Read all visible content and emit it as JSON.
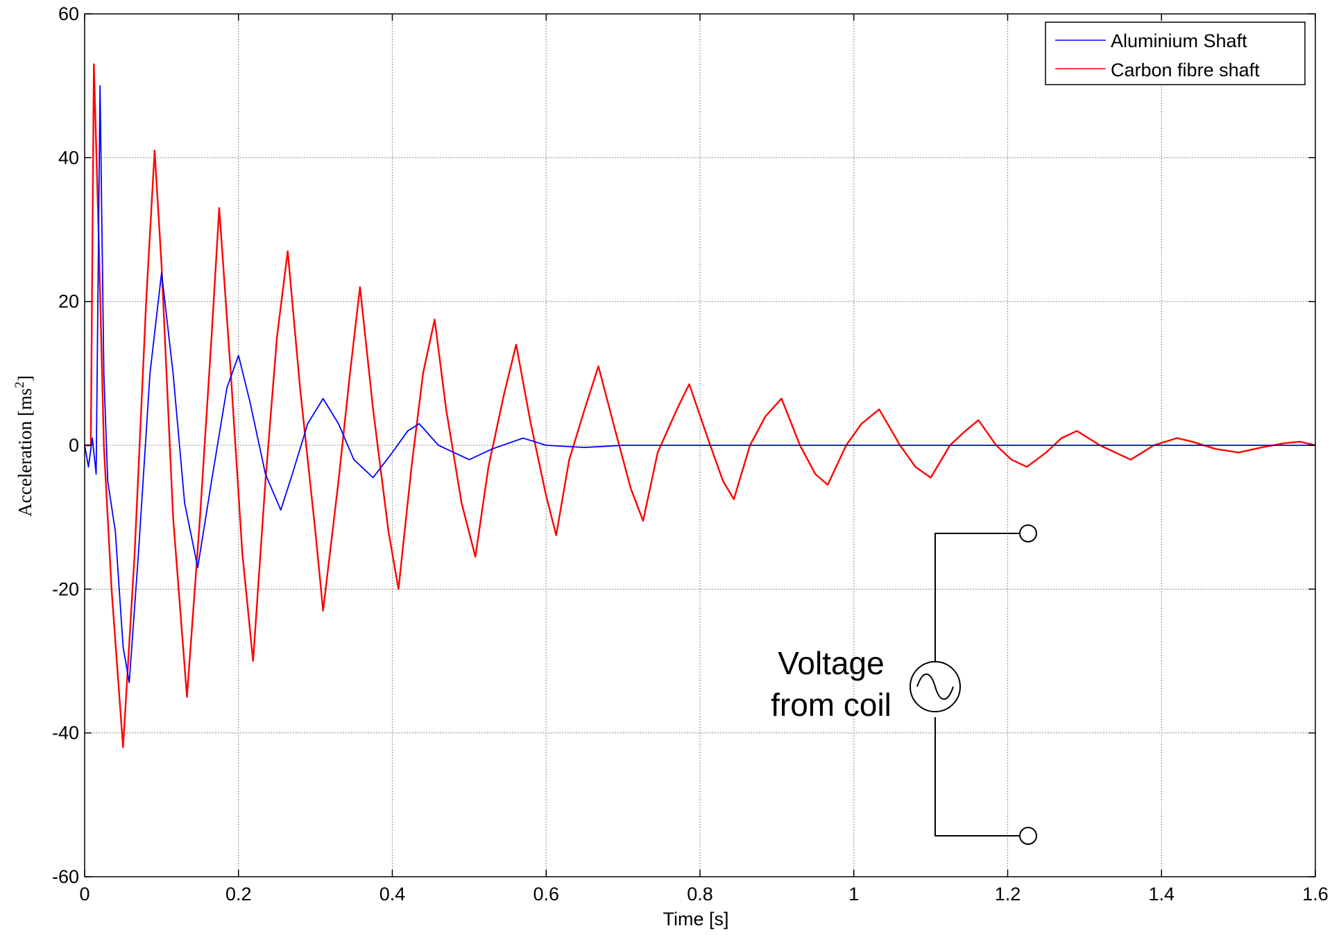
{
  "chart_data": {
    "type": "line",
    "xlabel": "Time [s]",
    "ylabel": "Acceleration [ms",
    "ylabel_sup": "2",
    "ylabel_end": "]",
    "xlim": [
      0,
      1.6
    ],
    "ylim": [
      -60,
      60
    ],
    "xticks": [
      "0",
      "0.2",
      "0.4",
      "0.6",
      "0.8",
      "1",
      "1.2",
      "1.4",
      "1.6"
    ],
    "yticks": [
      "-60",
      "-40",
      "-20",
      "0",
      "20",
      "40",
      "60"
    ],
    "grid": true,
    "legend_position": "top-right",
    "series": [
      {
        "name": "Aluminium Shaft",
        "color": "#0000ff",
        "points": [
          [
            0,
            0
          ],
          [
            0.005,
            -3
          ],
          [
            0.01,
            1
          ],
          [
            0.015,
            -4
          ],
          [
            0.02,
            50
          ],
          [
            0.025,
            10
          ],
          [
            0.03,
            -5
          ],
          [
            0.04,
            -12
          ],
          [
            0.05,
            -28
          ],
          [
            0.058,
            -33
          ],
          [
            0.07,
            -15
          ],
          [
            0.085,
            10
          ],
          [
            0.1,
            24
          ],
          [
            0.115,
            10
          ],
          [
            0.13,
            -8
          ],
          [
            0.147,
            -17
          ],
          [
            0.165,
            -5
          ],
          [
            0.185,
            8
          ],
          [
            0.2,
            12.5
          ],
          [
            0.215,
            6
          ],
          [
            0.235,
            -4
          ],
          [
            0.255,
            -9
          ],
          [
            0.27,
            -4
          ],
          [
            0.29,
            3
          ],
          [
            0.31,
            6.5
          ],
          [
            0.33,
            3
          ],
          [
            0.35,
            -2
          ],
          [
            0.375,
            -4.5
          ],
          [
            0.4,
            -1
          ],
          [
            0.42,
            2
          ],
          [
            0.435,
            3
          ],
          [
            0.46,
            0
          ],
          [
            0.5,
            -2
          ],
          [
            0.53,
            -0.5
          ],
          [
            0.57,
            1
          ],
          [
            0.6,
            0
          ],
          [
            0.65,
            -0.3
          ],
          [
            0.7,
            0
          ],
          [
            1.6,
            0
          ]
        ]
      },
      {
        "name": "Carbon fibre shaft",
        "color": "#ff0000",
        "points": [
          [
            0,
            0
          ],
          [
            0.008,
            0
          ],
          [
            0.012,
            53
          ],
          [
            0.018,
            30
          ],
          [
            0.025,
            0
          ],
          [
            0.035,
            -20
          ],
          [
            0.05,
            -42
          ],
          [
            0.065,
            -15
          ],
          [
            0.08,
            20
          ],
          [
            0.091,
            41
          ],
          [
            0.1,
            25
          ],
          [
            0.115,
            -10
          ],
          [
            0.133,
            -35
          ],
          [
            0.15,
            -10
          ],
          [
            0.165,
            15
          ],
          [
            0.175,
            33
          ],
          [
            0.19,
            10
          ],
          [
            0.205,
            -15
          ],
          [
            0.219,
            -30
          ],
          [
            0.235,
            -5
          ],
          [
            0.25,
            15
          ],
          [
            0.264,
            27
          ],
          [
            0.28,
            8
          ],
          [
            0.3,
            -12
          ],
          [
            0.31,
            -23
          ],
          [
            0.33,
            -5
          ],
          [
            0.345,
            10
          ],
          [
            0.358,
            22
          ],
          [
            0.375,
            5
          ],
          [
            0.395,
            -12
          ],
          [
            0.408,
            -20
          ],
          [
            0.425,
            -3
          ],
          [
            0.44,
            10
          ],
          [
            0.455,
            17.5
          ],
          [
            0.47,
            5
          ],
          [
            0.49,
            -8
          ],
          [
            0.508,
            -15.5
          ],
          [
            0.525,
            -3
          ],
          [
            0.545,
            7
          ],
          [
            0.561,
            14
          ],
          [
            0.58,
            3
          ],
          [
            0.6,
            -7
          ],
          [
            0.613,
            -12.5
          ],
          [
            0.63,
            -2
          ],
          [
            0.65,
            5
          ],
          [
            0.668,
            11
          ],
          [
            0.69,
            2
          ],
          [
            0.71,
            -6
          ],
          [
            0.726,
            -10.5
          ],
          [
            0.745,
            -1
          ],
          [
            0.77,
            5
          ],
          [
            0.786,
            8.5
          ],
          [
            0.81,
            1
          ],
          [
            0.83,
            -5
          ],
          [
            0.844,
            -7.5
          ],
          [
            0.865,
            0
          ],
          [
            0.885,
            4
          ],
          [
            0.906,
            6.5
          ],
          [
            0.93,
            0
          ],
          [
            0.95,
            -4
          ],
          [
            0.966,
            -5.5
          ],
          [
            0.99,
            0
          ],
          [
            1.01,
            3
          ],
          [
            1.033,
            5
          ],
          [
            1.06,
            0
          ],
          [
            1.08,
            -3
          ],
          [
            1.1,
            -4.5
          ],
          [
            1.125,
            0
          ],
          [
            1.145,
            2
          ],
          [
            1.162,
            3.5
          ],
          [
            1.185,
            0
          ],
          [
            1.205,
            -2
          ],
          [
            1.225,
            -3
          ],
          [
            1.25,
            -1
          ],
          [
            1.27,
            1
          ],
          [
            1.29,
            2
          ],
          [
            1.32,
            0
          ],
          [
            1.34,
            -1
          ],
          [
            1.36,
            -2
          ],
          [
            1.39,
            0
          ],
          [
            1.42,
            1
          ],
          [
            1.44,
            0.5
          ],
          [
            1.47,
            -0.5
          ],
          [
            1.5,
            -1
          ],
          [
            1.53,
            -0.3
          ],
          [
            1.56,
            0.3
          ],
          [
            1.58,
            0.5
          ],
          [
            1.6,
            0
          ]
        ]
      }
    ],
    "annotation": {
      "line1": "Voltage",
      "line2": "from coil"
    }
  }
}
